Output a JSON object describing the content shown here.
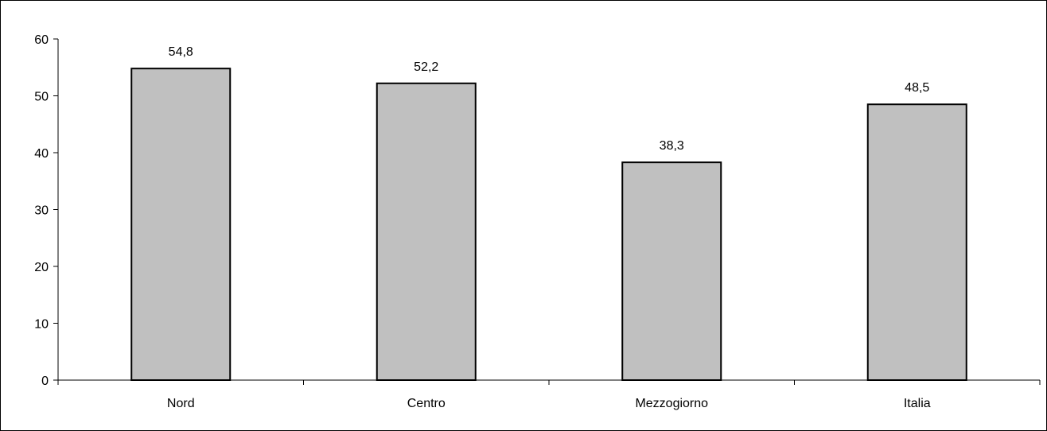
{
  "chart_data": {
    "type": "bar",
    "categories": [
      "Nord",
      "Centro",
      "Mezzogiorno",
      "Italia"
    ],
    "values": [
      54.8,
      52.2,
      38.3,
      48.5
    ],
    "value_labels": [
      "54,8",
      "52,2",
      "38,3",
      "48,5"
    ],
    "title": "",
    "xlabel": "",
    "ylabel": "",
    "ylim": [
      0,
      60
    ],
    "yticks": [
      0,
      10,
      20,
      30,
      40,
      50,
      60
    ],
    "grid": false,
    "legend": "none",
    "colors": {
      "bar_fill": "#c0c0c0",
      "bar_stroke": "#000000",
      "axis": "#000000"
    }
  }
}
